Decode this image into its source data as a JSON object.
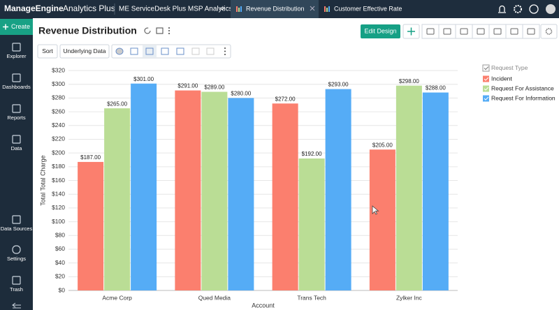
{
  "header": {
    "brand": "ManageEngine",
    "product": "Analytics Plus",
    "workspace": "ME ServiceDesk Plus MSP Analytics",
    "tabs": [
      "Revenue Distribution",
      "Customer Effective Rate"
    ]
  },
  "sidebar": {
    "create": "Create",
    "items": [
      "Explorer",
      "Dashboards",
      "Reports",
      "Data",
      "Data Sources",
      "Settings",
      "Trash"
    ]
  },
  "toolbar": {
    "title": "Revenue Distribution",
    "edit_button": "Edit Design",
    "sort_button": "Sort",
    "underlying_button": "Underlying Data"
  },
  "chart_data": {
    "type": "bar",
    "x_label": "Account",
    "y_label": "Total Total Charge",
    "legend_title": "Request Type",
    "legend_position": "right",
    "grid": true,
    "categories": [
      "Acme Corp",
      "Qued Media",
      "Trans Tech",
      "Zylker Inc"
    ],
    "series": [
      {
        "name": "Incident",
        "color": "#fb7f6e",
        "values": [
          187,
          291,
          272,
          205
        ],
        "value_labels": [
          "$187.00",
          "$291.00",
          "$272.00",
          "$205.00"
        ]
      },
      {
        "name": "Request For Assistance",
        "color": "#badd95",
        "values": [
          265,
          289,
          192,
          298
        ],
        "value_labels": [
          "$265.00",
          "$289.00",
          "$192.00",
          "$298.00"
        ]
      },
      {
        "name": "Request For Information",
        "color": "#55acf6",
        "values": [
          301,
          280,
          293,
          288
        ],
        "value_labels": [
          "$301.00",
          "$280.00",
          "$293.00",
          "$288.00"
        ]
      }
    ],
    "ylim": [
      0,
      320
    ],
    "yticks": [
      {
        "value": 0,
        "label": "$0"
      },
      {
        "value": 20,
        "label": "$20"
      },
      {
        "value": 40,
        "label": "$40"
      },
      {
        "value": 60,
        "label": "$60"
      },
      {
        "value": 80,
        "label": "$80"
      },
      {
        "value": 100,
        "label": "$100"
      },
      {
        "value": 120,
        "label": "$120"
      },
      {
        "value": 140,
        "label": "$140"
      },
      {
        "value": 160,
        "label": "$160"
      },
      {
        "value": 180,
        "label": "$180"
      },
      {
        "value": 200,
        "label": "$200"
      },
      {
        "value": 220,
        "label": "$220"
      },
      {
        "value": 240,
        "label": "$240"
      },
      {
        "value": 260,
        "label": "$260"
      },
      {
        "value": 280,
        "label": "$280"
      },
      {
        "value": 300,
        "label": "$300"
      },
      {
        "value": 320,
        "label": "$320"
      }
    ]
  }
}
